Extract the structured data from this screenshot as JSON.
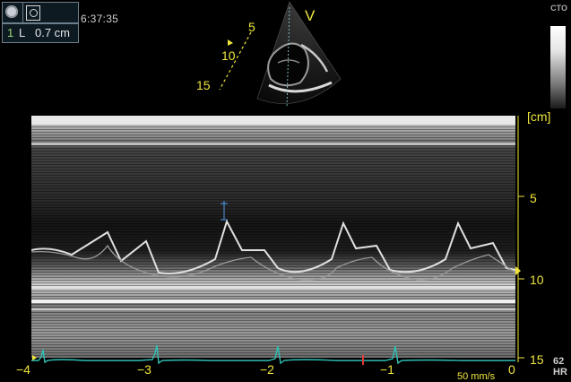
{
  "status": {
    "clock": "6:37:35",
    "top_right_label": "CTO",
    "hr_value": "62",
    "hr_label": "HR"
  },
  "measurement": {
    "index": "1",
    "label": "L",
    "value": "0.7 cm"
  },
  "sector": {
    "view_label": "V",
    "depth_ticks": [
      "5",
      "10",
      "15"
    ]
  },
  "mmode": {
    "depth_unit": "[cm]",
    "depth_labels": [
      "5",
      "10",
      "15"
    ],
    "time_labels": [
      "−4",
      "−3",
      "−2",
      "−1",
      "0"
    ],
    "sweep_speed": "50 mm/s"
  },
  "colors": {
    "annotation": "#f0e63c",
    "ecg_trace": "#2fc1b4",
    "caliper": "#4f9be8"
  },
  "icons": [
    "record-icon",
    "probe-icon"
  ]
}
